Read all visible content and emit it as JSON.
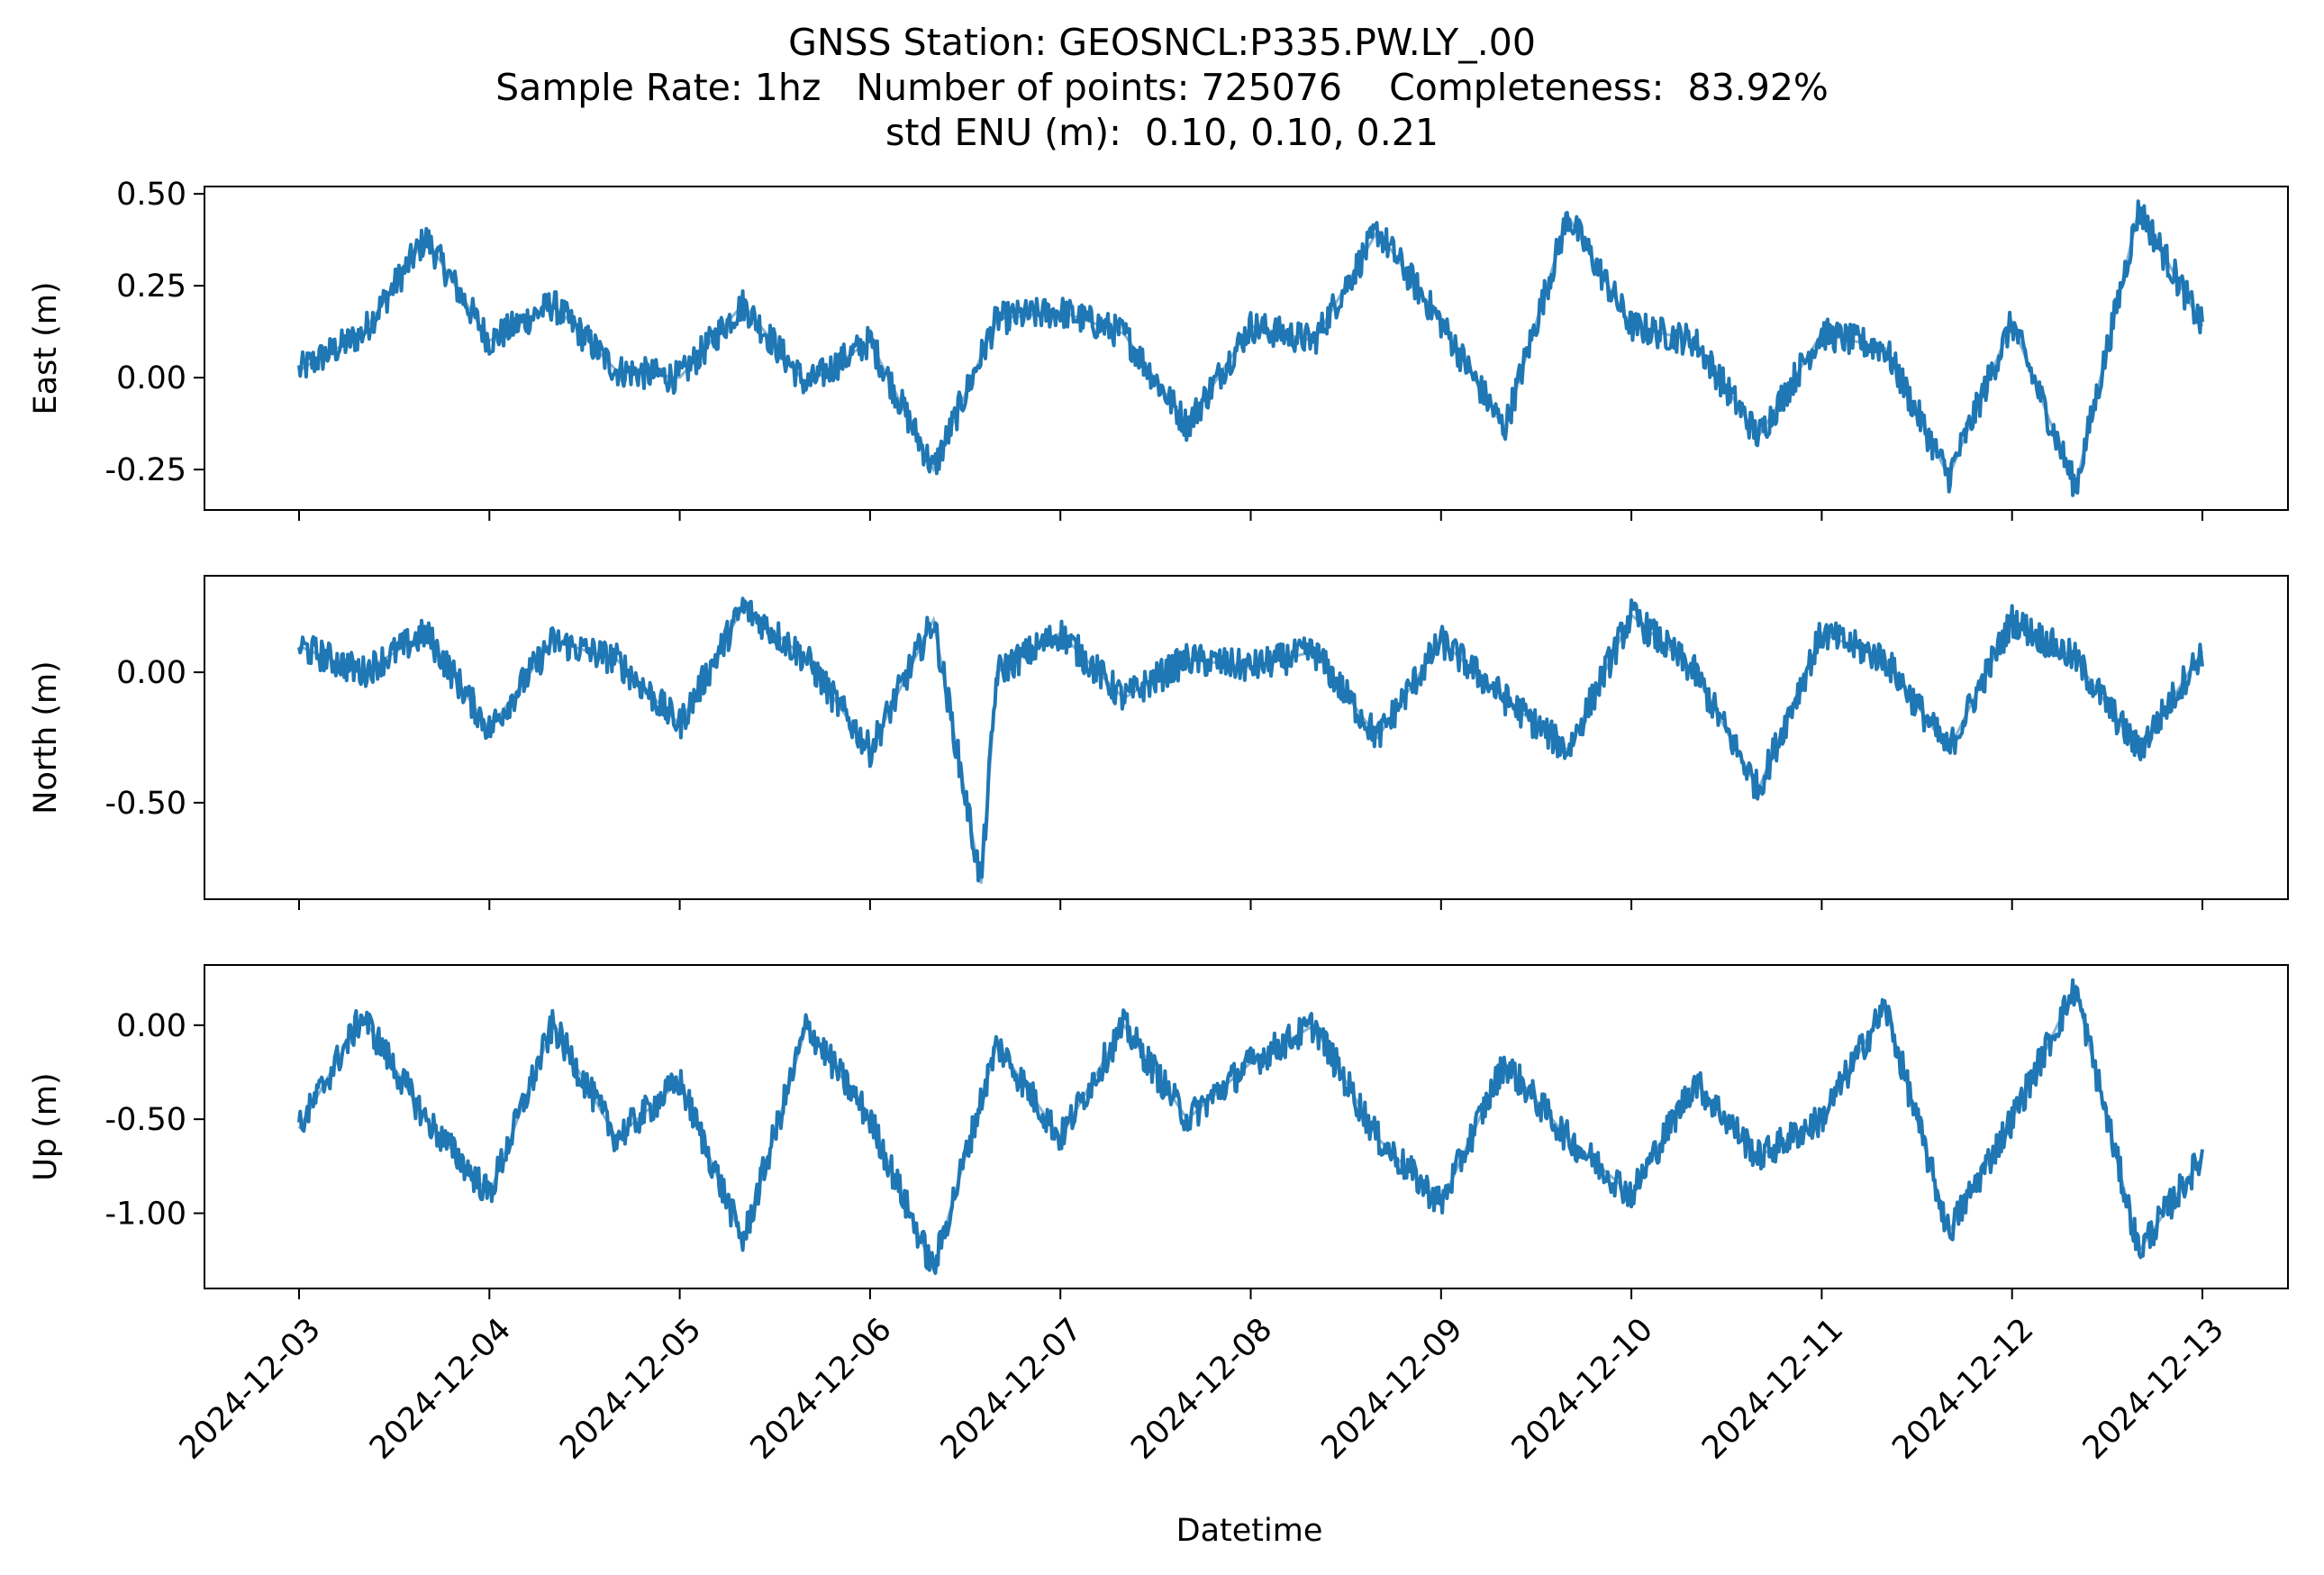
{
  "figure": {
    "title_line1": "GNSS Station: GEOSNCL:P335.PW.LY_.00",
    "title_line2": "Sample Rate: 1hz   Number of points: 725076    Completeness:  83.92%",
    "title_line3": "std ENU (m):  0.10, 0.10, 0.21"
  },
  "chart_data": {
    "type": "line",
    "xlabel": "Datetime",
    "x_tick_labels": [
      "2024-12-03",
      "2024-12-04",
      "2024-12-05",
      "2024-12-06",
      "2024-12-07",
      "2024-12-08",
      "2024-12-09",
      "2024-12-10",
      "2024-12-11",
      "2024-12-12",
      "2024-12-13"
    ],
    "x_range": [
      "2024-12-03",
      "2024-12-13"
    ],
    "line_color": "#1f77b4",
    "grid": false,
    "panels": [
      {
        "name": "east",
        "ylabel": "East (m)",
        "ylim": [
          -0.36,
          0.52
        ],
        "yticks": [
          0.5,
          0.25,
          0.0,
          -0.25
        ],
        "ytick_labels": [
          "0.50",
          "0.25",
          "0.00",
          "-0.25"
        ],
        "series_summary": {
          "min": -0.32,
          "max": 0.48,
          "typical": 0.1
        },
        "x": [
          "2024-12-03",
          "2024-12-03T08:00",
          "2024-12-03T16:00",
          "2024-12-04",
          "2024-12-04T08:00",
          "2024-12-04T16:00",
          "2024-12-05",
          "2024-12-05T08:00",
          "2024-12-05T16:00",
          "2024-12-06",
          "2024-12-06T08:00",
          "2024-12-06T16:00",
          "2024-12-07",
          "2024-12-07T08:00",
          "2024-12-07T16:00",
          "2024-12-08",
          "2024-12-08T08:00",
          "2024-12-08T16:00",
          "2024-12-09",
          "2024-12-09T08:00",
          "2024-12-09T16:00",
          "2024-12-10",
          "2024-12-10T08:00",
          "2024-12-10T16:00",
          "2024-12-11",
          "2024-12-11T08:00",
          "2024-12-11T16:00",
          "2024-12-12",
          "2024-12-12T08:00",
          "2024-12-12T16:00",
          "2024-12-13"
        ],
        "values": [
          0.02,
          0.12,
          0.38,
          0.1,
          0.2,
          0.02,
          0.0,
          0.2,
          -0.02,
          0.1,
          -0.25,
          0.16,
          0.18,
          0.12,
          -0.13,
          0.14,
          0.1,
          0.4,
          0.15,
          -0.14,
          0.44,
          0.14,
          0.1,
          -0.16,
          0.12,
          0.08,
          -0.27,
          0.15,
          -0.3,
          0.46,
          0.14
        ]
      },
      {
        "name": "north",
        "ylabel": "North (m)",
        "ylim": [
          -0.87,
          0.37
        ],
        "yticks": [
          0.0,
          -0.5
        ],
        "ytick_labels": [
          "0.00",
          "-0.50"
        ],
        "series_summary": {
          "min": -0.81,
          "max": 0.33,
          "typical": 0.0
        },
        "x": [
          "2024-12-03",
          "2024-12-03T08:00",
          "2024-12-03T16:00",
          "2024-12-04",
          "2024-12-04T08:00",
          "2024-12-04T16:00",
          "2024-12-05",
          "2024-12-05T08:00",
          "2024-12-05T16:00",
          "2024-12-06",
          "2024-12-06T08:00",
          "2024-12-06T14:00",
          "2024-12-06T16:00",
          "2024-12-07",
          "2024-12-07T08:00",
          "2024-12-07T16:00",
          "2024-12-08",
          "2024-12-08T08:00",
          "2024-12-08T16:00",
          "2024-12-09",
          "2024-12-09T08:00",
          "2024-12-09T16:00",
          "2024-12-10",
          "2024-12-10T08:00",
          "2024-12-10T16:00",
          "2024-12-11",
          "2024-12-11T08:00",
          "2024-12-11T16:00",
          "2024-12-12",
          "2024-12-12T08:00",
          "2024-12-12T16:00",
          "2024-12-13"
        ],
        "values": [
          0.1,
          0.0,
          0.15,
          -0.22,
          0.12,
          0.05,
          -0.2,
          0.25,
          0.05,
          -0.3,
          0.2,
          -0.81,
          0.0,
          0.15,
          -0.1,
          0.05,
          0.02,
          0.08,
          -0.25,
          0.12,
          -0.1,
          -0.3,
          0.22,
          0.0,
          -0.45,
          0.15,
          0.05,
          -0.3,
          0.2,
          0.05,
          -0.3,
          0.08
        ]
      },
      {
        "name": "up",
        "ylabel": "Up (m)",
        "ylim": [
          -1.4,
          0.32
        ],
        "yticks": [
          0.0,
          -0.5,
          -1.0
        ],
        "ytick_labels": [
          "0.00",
          "-0.50",
          "-1.00"
        ],
        "series_summary": {
          "min": -1.33,
          "max": 0.24,
          "typical": -0.5
        },
        "x": [
          "2024-12-03",
          "2024-12-03T08:00",
          "2024-12-03T16:00",
          "2024-12-04",
          "2024-12-04T08:00",
          "2024-12-04T16:00",
          "2024-12-05",
          "2024-12-05T08:00",
          "2024-12-05T16:00",
          "2024-12-06",
          "2024-12-06T08:00",
          "2024-12-06T16:00",
          "2024-12-07",
          "2024-12-07T08:00",
          "2024-12-07T16:00",
          "2024-12-08",
          "2024-12-08T08:00",
          "2024-12-08T16:00",
          "2024-12-09",
          "2024-12-09T08:00",
          "2024-12-09T16:00",
          "2024-12-10",
          "2024-12-10T08:00",
          "2024-12-10T16:00",
          "2024-12-11",
          "2024-12-11T08:00",
          "2024-12-11T16:00",
          "2024-12-12",
          "2024-12-12T08:00",
          "2024-12-12T16:00",
          "2024-12-13"
        ],
        "values": [
          -0.55,
          0.05,
          -0.5,
          -0.9,
          0.0,
          -0.6,
          -0.3,
          -1.15,
          0.0,
          -0.5,
          -1.3,
          -0.1,
          -0.6,
          0.0,
          -0.5,
          -0.2,
          0.0,
          -0.6,
          -0.95,
          -0.2,
          -0.6,
          -0.9,
          -0.3,
          -0.7,
          -0.5,
          0.1,
          -1.1,
          -0.5,
          0.2,
          -1.2,
          -0.7
        ]
      }
    ]
  }
}
